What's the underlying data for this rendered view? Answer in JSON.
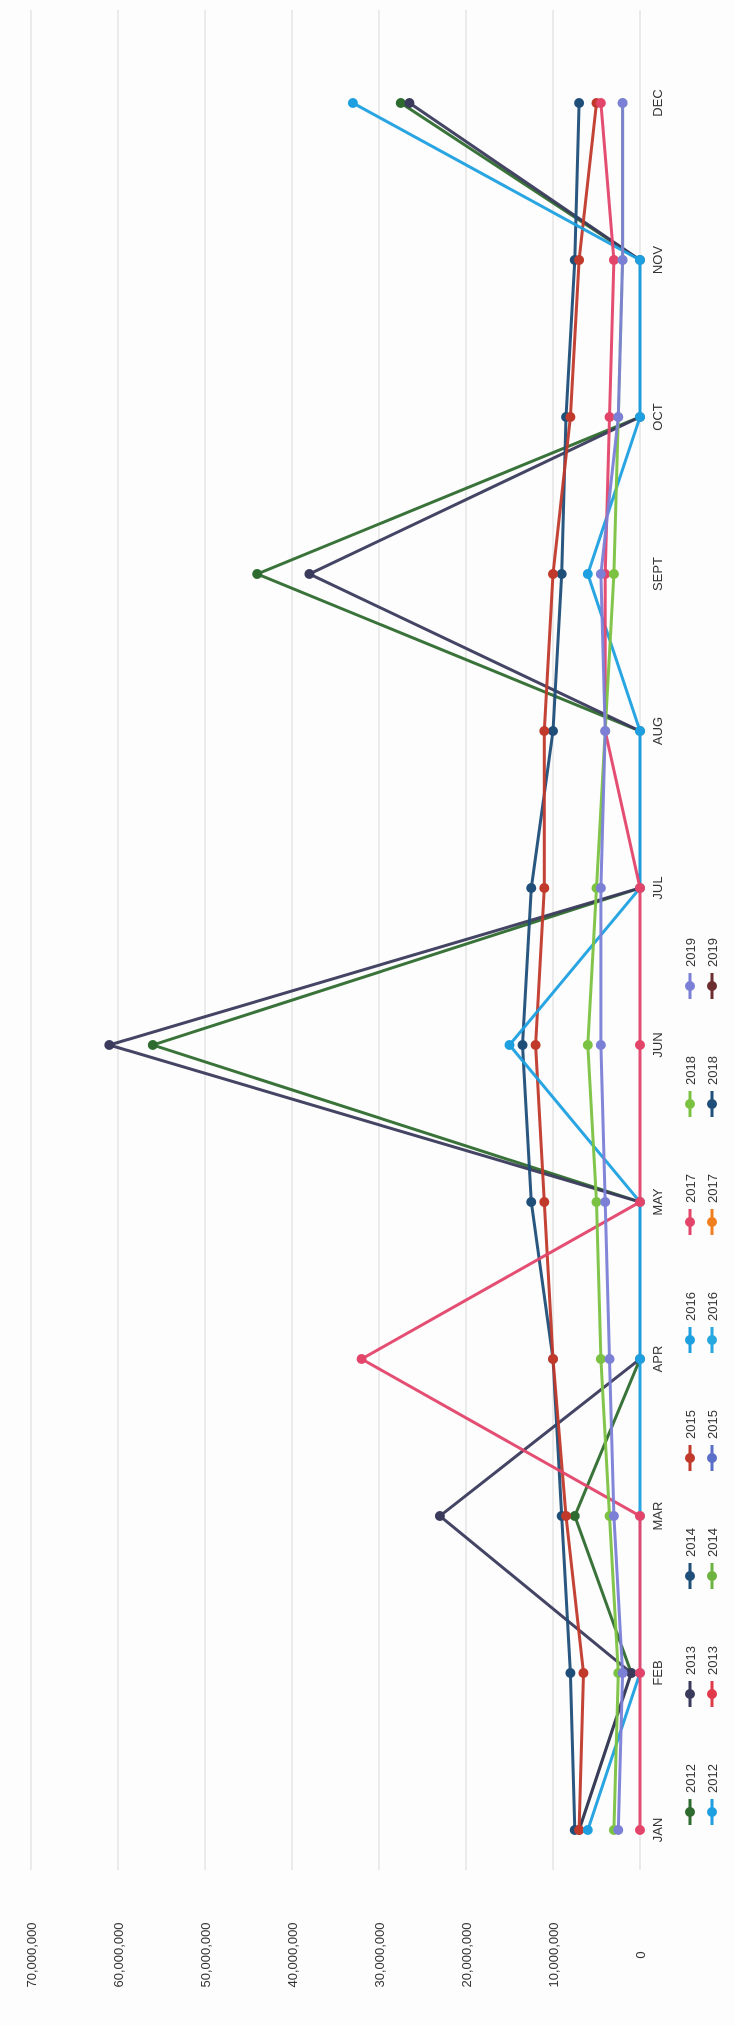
{
  "chart_data": {
    "type": "line",
    "orientation": "rotated-90-clockwise",
    "categories": [
      "JAN",
      "FEB",
      "MAR",
      "APR",
      "MAY",
      "JUN",
      "JUL",
      "AUG",
      "SEPT",
      "OCT",
      "NOV",
      "DEC"
    ],
    "ylim": [
      0,
      70000000
    ],
    "yticks": [
      0,
      10000000,
      20000000,
      30000000,
      40000000,
      50000000,
      60000000,
      70000000
    ],
    "ytick_labels": [
      "0",
      "10,000,000",
      "20,000,000",
      "30,000,000",
      "40,000,000",
      "50,000,000",
      "60,000,000",
      "70,000,000"
    ],
    "grid": true,
    "legend_placement": "bottom",
    "series": [
      {
        "name": "2012",
        "color": "#2e6b2e",
        "values": [
          7000000,
          1000000,
          7500000,
          0,
          0,
          56000000,
          0,
          0,
          44000000,
          0,
          0,
          27500000
        ]
      },
      {
        "name": "2013",
        "color": "#3a3a5c",
        "values": [
          7000000,
          1000000,
          23000000,
          0,
          0,
          61000000,
          0,
          0,
          38000000,
          0,
          0,
          26500000
        ]
      },
      {
        "name": "2014",
        "color": "#1f4e79",
        "values": [
          7500000,
          8000000,
          9000000,
          10000000,
          12500000,
          13500000,
          12500000,
          10000000,
          9000000,
          8500000,
          7500000,
          7000000
        ]
      },
      {
        "name": "2015",
        "color": "#c0392b",
        "values": [
          7000000,
          6500000,
          8500000,
          10000000,
          11000000,
          12000000,
          11000000,
          11000000,
          10000000,
          8000000,
          7000000,
          5000000
        ]
      },
      {
        "name": "2016",
        "color": "#1ea0e0",
        "values": [
          6000000,
          0,
          0,
          0,
          0,
          15000000,
          0,
          0,
          6000000,
          0,
          0,
          33000000
        ]
      },
      {
        "name": "2017",
        "color": "#e3456a",
        "values": [
          0,
          0,
          0,
          32000000,
          0,
          0,
          0,
          4000000,
          4000000,
          3500000,
          3000000,
          4500000
        ]
      },
      {
        "name": "2018",
        "color": "#7cc242",
        "values": [
          3000000,
          2500000,
          3500000,
          4500000,
          5000000,
          6000000,
          5000000,
          4000000,
          3000000,
          2500000,
          2000000,
          2000000
        ]
      },
      {
        "name": "2019",
        "color": "#7b7fd6",
        "values": [
          2500000,
          2000000,
          3000000,
          3500000,
          4000000,
          4500000,
          4500000,
          4000000,
          4500000,
          2500000,
          2000000,
          2000000
        ]
      }
    ],
    "legend": {
      "rows": [
        [
          {
            "name": "2012",
            "color": "#2e6b2e"
          },
          {
            "name": "2013",
            "color": "#3a3a5c"
          },
          {
            "name": "2014",
            "color": "#1f4e79"
          },
          {
            "name": "2015",
            "color": "#c0392b"
          },
          {
            "name": "2016",
            "color": "#1ea0e0"
          },
          {
            "name": "2017",
            "color": "#e3456a"
          },
          {
            "name": "2018",
            "color": "#7cc242"
          },
          {
            "name": "2019",
            "color": "#7b7fd6"
          }
        ],
        [
          {
            "name": "2012",
            "color": "#1ea0e0"
          },
          {
            "name": "2013",
            "color": "#e03a4a"
          },
          {
            "name": "2014",
            "color": "#6db33f"
          },
          {
            "name": "2015",
            "color": "#5b6ec8"
          },
          {
            "name": "2016",
            "color": "#29a8e0"
          },
          {
            "name": "2017",
            "color": "#f07f1e"
          },
          {
            "name": "2018",
            "color": "#1f4e79"
          },
          {
            "name": "2019",
            "color": "#6b2d2d"
          }
        ]
      ]
    }
  }
}
